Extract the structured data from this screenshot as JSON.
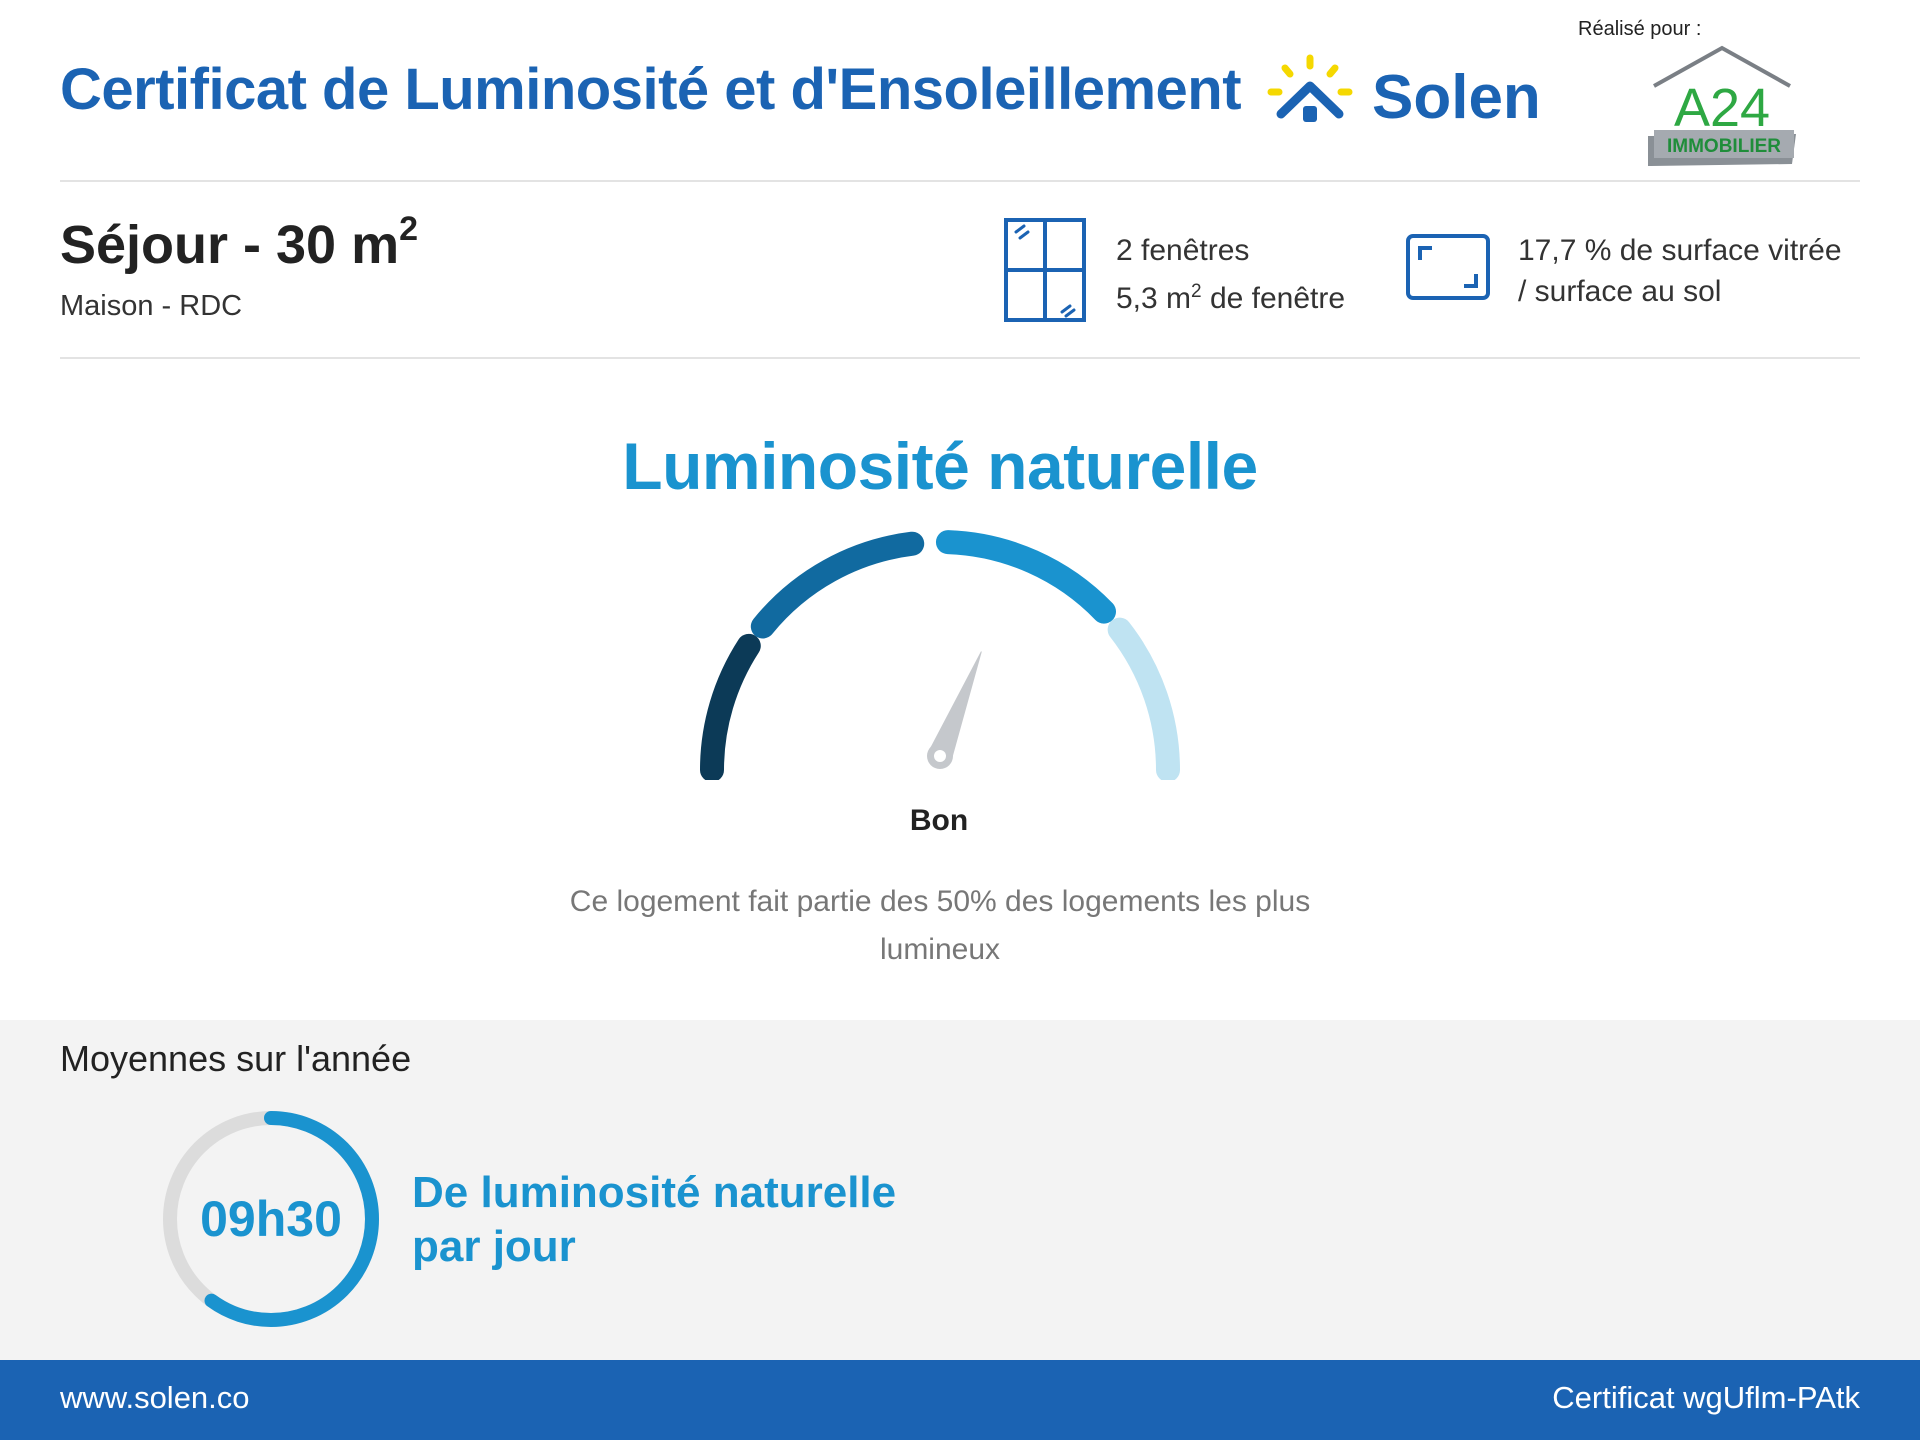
{
  "header": {
    "title": "Certificat de Luminosité et d'Ensoleillement",
    "brand": "Solen",
    "realise_pour": "Réalisé pour :",
    "client_logo_main": "A24",
    "client_logo_sub": "IMMOBILIER"
  },
  "room": {
    "title": "Séjour - 30 m",
    "title_sup": "2",
    "subtitle": "Maison - RDC"
  },
  "windows": {
    "count": "2 fenêtres",
    "area_prefix": "5,3 m",
    "area_sup": "2",
    "area_suffix": " de fenêtre"
  },
  "glazing": {
    "line1": "17,7 % de surface vitrée",
    "line2": "/ surface au sol"
  },
  "luminosity": {
    "title": "Luminosité naturelle",
    "rating": "Bon",
    "description": "Ce logement fait partie des 50% des logements les plus lumineux",
    "gauge_segments": 5,
    "gauge_position": 0.62,
    "colors": [
      "#0c3a57",
      "#116aa0",
      "#1a93cf",
      "#bfe3f2"
    ]
  },
  "averages": {
    "title": "Moyennes sur l'année",
    "duration": "09h30",
    "progress": 0.6,
    "label_line1": "De luminosité naturelle",
    "label_line2": "par jour"
  },
  "footer": {
    "website": "www.solen.co",
    "certificate": "Certificat wgUflm-PAtk"
  },
  "theme": {
    "primary": "#1b63b3",
    "accent": "#1a93cf",
    "sun": "#f5d800"
  }
}
